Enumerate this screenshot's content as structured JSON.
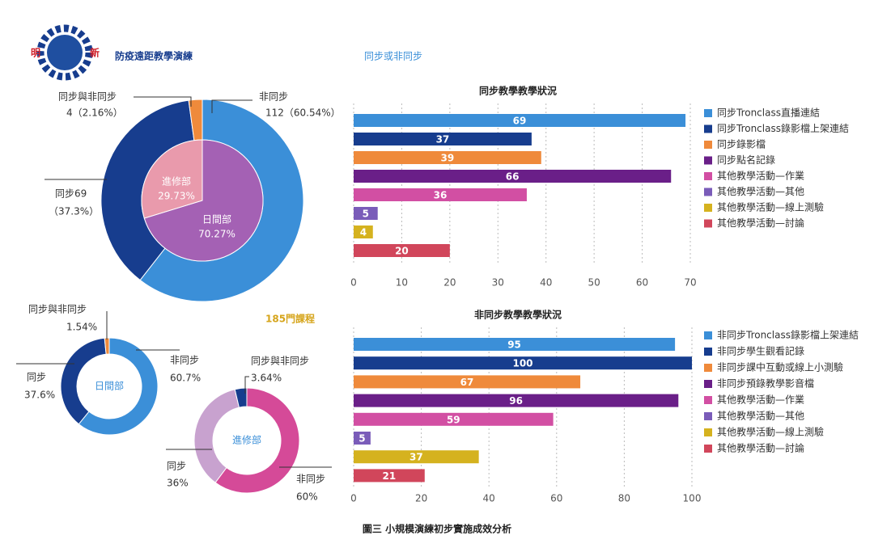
{
  "header": {
    "logo_left": "明",
    "logo_right": "新",
    "title": "防疫遠距教學演練",
    "subtitle": "同步或非同步"
  },
  "course_count": "185門課程",
  "caption": "圖三 小規模演練初步實施成效分析",
  "chart_data": [
    {
      "type": "donut",
      "categories": [
        "非同步",
        "同步69",
        "同步與非同步"
      ],
      "values": [
        60.54,
        37.3,
        2.16
      ],
      "value_labels": [
        "112（60.54%）",
        "（37.3%）",
        "4（2.16%）"
      ],
      "colors": [
        "#3b8fd8",
        "#173d8e",
        "#ef8a3b"
      ]
    },
    {
      "type": "pie",
      "categories": [
        "日間部",
        "進修部"
      ],
      "values": [
        70.27,
        29.73
      ],
      "value_labels": [
        "70.27%",
        "29.73%"
      ],
      "colors": [
        "#a461b4",
        "#e99aac"
      ]
    },
    {
      "type": "bar",
      "title": "同步教學教學狀況",
      "categories": [
        "同步Tronclass直播連結",
        "同步Tronclass錄影檔上架連結",
        "同步錄影檔",
        "同步點名記錄",
        "其他教學活動—作業",
        "其他教學活動—其他",
        "其他教學活動—線上測驗",
        "其他教學活動—討論"
      ],
      "values": [
        69,
        37,
        39,
        66,
        36,
        5,
        4,
        20
      ],
      "colors": [
        "#3b8fd8",
        "#173d8e",
        "#ef8a3b",
        "#6a1f88",
        "#d24fa3",
        "#7a5cb9",
        "#d5b21f",
        "#d1465b"
      ],
      "xlim": [
        0,
        70
      ],
      "xticks": [
        0,
        10,
        20,
        30,
        40,
        50,
        60,
        70
      ],
      "grid": true
    },
    {
      "type": "donut",
      "title": "日間部",
      "categories": [
        "非同步",
        "同步",
        "同步與非同步"
      ],
      "values": [
        60.7,
        37.6,
        1.54
      ],
      "value_labels": [
        "60.7%",
        "37.6%",
        "1.54%"
      ],
      "colors": [
        "#3b8fd8",
        "#173d8e",
        "#ef8a3b"
      ]
    },
    {
      "type": "donut",
      "title": "進修部",
      "categories": [
        "非同步",
        "同步",
        "同步與非同步"
      ],
      "values": [
        60,
        36,
        3.64
      ],
      "value_labels": [
        "60%",
        "36%",
        "3.64%"
      ],
      "colors": [
        "#d54a98",
        "#c8a2cf",
        "#173d8e"
      ]
    },
    {
      "type": "bar",
      "title": "非同步教學教學狀況",
      "categories": [
        "非同步Tronclass錄影檔上架連結",
        "非同步學生觀看記錄",
        "非同步課中互動或線上小測驗",
        "非同步預錄教學影音檔",
        "其他教學活動—作業",
        "其他教學活動—其他",
        "其他教學活動—線上測驗",
        "其他教學活動—討論"
      ],
      "values": [
        95,
        100,
        67,
        96,
        59,
        5,
        37,
        21
      ],
      "colors": [
        "#3b8fd8",
        "#173d8e",
        "#ef8a3b",
        "#6a1f88",
        "#d24fa3",
        "#7a5cb9",
        "#d5b21f",
        "#d1465b"
      ],
      "xlim": [
        0,
        100
      ],
      "xticks": [
        0,
        20,
        40,
        60,
        80,
        100
      ],
      "grid": true
    }
  ]
}
